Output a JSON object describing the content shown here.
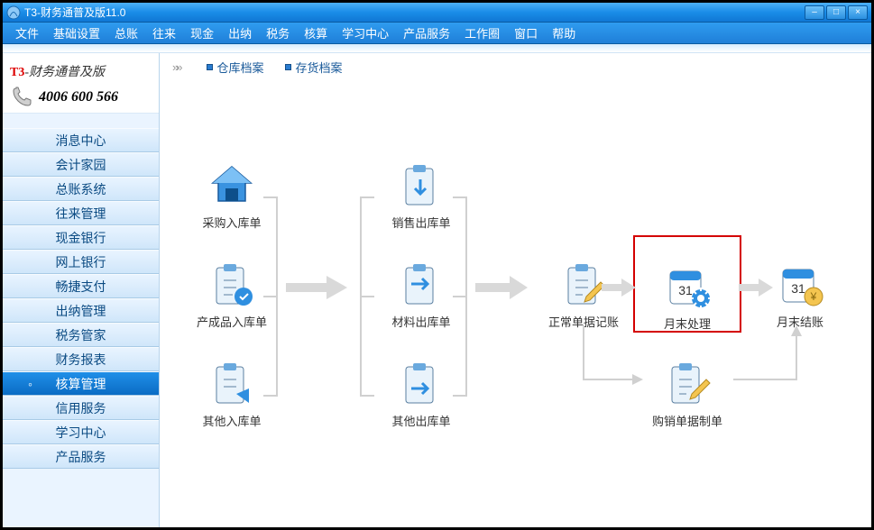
{
  "title": "T3-财务通普及版11.0",
  "menu": [
    "文件",
    "基础设置",
    "总账",
    "往来",
    "现金",
    "出纳",
    "税务",
    "核算",
    "学习中心",
    "产品服务",
    "工作圈",
    "窗口",
    "帮助"
  ],
  "brand": {
    "logo_prefix": "T3",
    "logo_rest": "-财务通普及版",
    "phone": "4006 600 566"
  },
  "sidebar": {
    "items": [
      "消息中心",
      "会计家园",
      "总账系统",
      "往来管理",
      "现金银行",
      "网上银行",
      "畅捷支付",
      "出纳管理",
      "税务管家",
      "财务报表",
      "核算管理",
      "信用服务",
      "学习中心",
      "产品服务"
    ],
    "active_index": 10
  },
  "toolbar_links": [
    "仓库档案",
    "存货档案"
  ],
  "nodes": {
    "n_cgrk": {
      "label": "采购入库单",
      "icon": "house"
    },
    "n_ccprk": {
      "label": "产成品入库单",
      "icon": "clipboard-in"
    },
    "n_qtrk": {
      "label": "其他入库单",
      "icon": "clipboard-share"
    },
    "n_xsck": {
      "label": "销售出库单",
      "icon": "clipboard-out"
    },
    "n_clck": {
      "label": "材料出库单",
      "icon": "clipboard-out2"
    },
    "n_qtck": {
      "label": "其他出库单",
      "icon": "clipboard-out3"
    },
    "n_zcdj": {
      "label": "正常单据记账",
      "icon": "clipboard-edit"
    },
    "n_ymcl": {
      "label": "月末处理",
      "icon": "calendar-gear",
      "highlight": true
    },
    "n_ymjz": {
      "label": "月末结账",
      "icon": "calendar-coin"
    },
    "n_gxdj": {
      "label": "购销单据制单",
      "icon": "clipboard-write"
    }
  },
  "colors": {
    "titlebar_bg": "#1a8de8",
    "sidebar_item_bg": "#cfe6fa",
    "sidebar_active_bg": "#0b6cc4",
    "arrow": "#c9c9c9",
    "highlight_box": "#d40000",
    "icon_blue": "#2f8fe0",
    "icon_dark": "#185a9d"
  }
}
